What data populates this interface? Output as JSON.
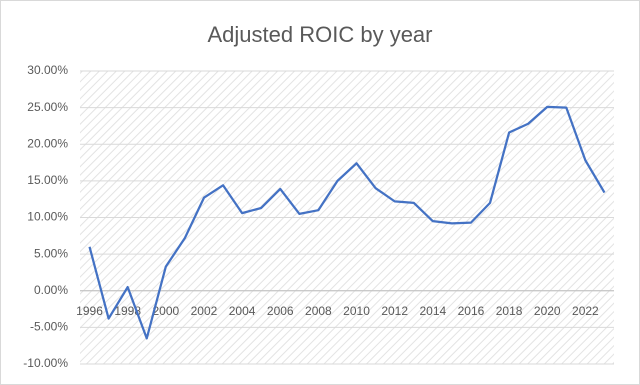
{
  "chart_data": {
    "type": "line",
    "title": "Adjusted ROIC by year",
    "x": [
      1996,
      1997,
      1998,
      1999,
      2000,
      2001,
      2002,
      2003,
      2004,
      2005,
      2006,
      2007,
      2008,
      2009,
      2010,
      2011,
      2012,
      2013,
      2014,
      2015,
      2016,
      2017,
      2018,
      2019,
      2020,
      2021,
      2022,
      2023
    ],
    "series": [
      {
        "name": "Adjusted ROIC",
        "color": "#4472c4",
        "values": [
          6.0,
          -3.8,
          0.5,
          -6.5,
          3.3,
          7.2,
          12.7,
          14.4,
          10.6,
          11.3,
          13.9,
          10.5,
          11.0,
          15.0,
          17.4,
          14.0,
          12.2,
          12.0,
          9.5,
          9.2,
          9.3,
          12.0,
          21.6,
          22.8,
          25.1,
          25.0,
          17.8,
          13.4
        ]
      }
    ],
    "xlim": [
      1995.5,
      2023.5
    ],
    "xticks": [
      1996,
      1998,
      2000,
      2002,
      2004,
      2006,
      2008,
      2010,
      2012,
      2014,
      2016,
      2018,
      2020,
      2022
    ],
    "ylim": [
      -10,
      30
    ],
    "yticks": [
      {
        "value": -10,
        "label": "-10.00%"
      },
      {
        "value": -5,
        "label": "-5.00%"
      },
      {
        "value": 0,
        "label": "0.00%"
      },
      {
        "value": 5,
        "label": "5.00%"
      },
      {
        "value": 10,
        "label": "10.00%"
      },
      {
        "value": 15,
        "label": "15.00%"
      },
      {
        "value": 20,
        "label": "20.00%"
      },
      {
        "value": 25,
        "label": "25.00%"
      },
      {
        "value": 30,
        "label": "30.00%"
      }
    ],
    "grid": true
  }
}
